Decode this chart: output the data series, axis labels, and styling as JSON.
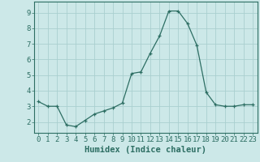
{
  "x": [
    0,
    1,
    2,
    3,
    4,
    5,
    6,
    7,
    8,
    9,
    10,
    11,
    12,
    13,
    14,
    15,
    16,
    17,
    18,
    19,
    20,
    21,
    22,
    23
  ],
  "y": [
    3.3,
    3.0,
    3.0,
    1.8,
    1.7,
    2.1,
    2.5,
    2.7,
    2.9,
    3.2,
    5.1,
    5.2,
    6.4,
    7.5,
    9.1,
    9.1,
    8.3,
    6.9,
    3.9,
    3.1,
    3.0,
    3.0,
    3.1,
    3.1
  ],
  "xlabel": "Humidex (Indice chaleur)",
  "line_color": "#2d6e63",
  "marker": "+",
  "bg_color": "#cce8e8",
  "grid_color": "#aacfcf",
  "xlim": [
    -0.5,
    23.5
  ],
  "ylim": [
    1.3,
    9.7
  ],
  "yticks": [
    2,
    3,
    4,
    5,
    6,
    7,
    8,
    9
  ],
  "xticks": [
    0,
    1,
    2,
    3,
    4,
    5,
    6,
    7,
    8,
    9,
    10,
    11,
    12,
    13,
    14,
    15,
    16,
    17,
    18,
    19,
    20,
    21,
    22,
    23
  ],
  "tick_color": "#2d6e63",
  "label_color": "#2d6e63",
  "font_size": 6.5,
  "xlabel_fontsize": 7.5
}
